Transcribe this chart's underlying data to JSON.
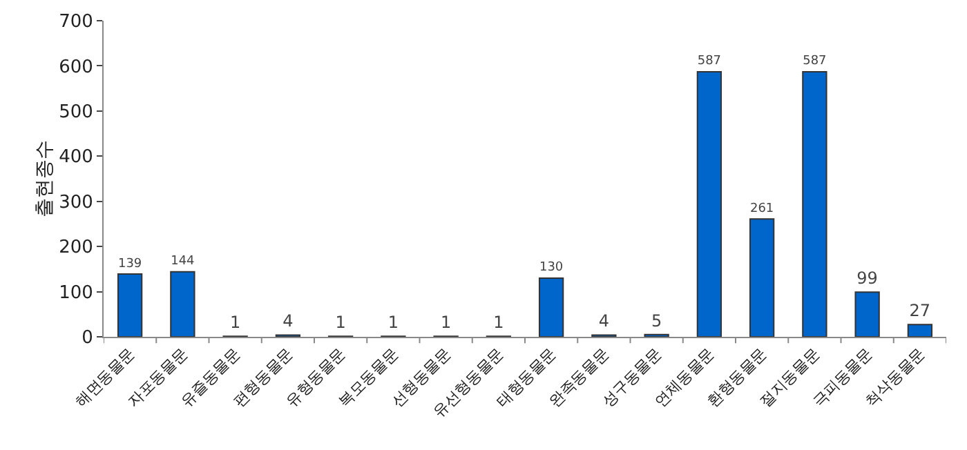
{
  "chart_data": {
    "type": "bar",
    "ylabel": "출현종수",
    "categories": [
      "해면동물문",
      "자포동물문",
      "유즐동물문",
      "편형동물문",
      "유형동물문",
      "복모동물문",
      "선형동물문",
      "유선형동물문",
      "태형동물문",
      "완족동물문",
      "성구동물문",
      "연체동물문",
      "환형동물문",
      "절지동물문",
      "극피동물문",
      "척삭동물문"
    ],
    "values": [
      139,
      144,
      1,
      4,
      1,
      1,
      1,
      1,
      130,
      4,
      5,
      587,
      261,
      587,
      99,
      27
    ],
    "color": "#0066cc",
    "ylim": [
      0,
      700
    ],
    "yticks": [
      0,
      100,
      200,
      300,
      400,
      500,
      600,
      700
    ],
    "grid": false,
    "data_labels": true
  }
}
